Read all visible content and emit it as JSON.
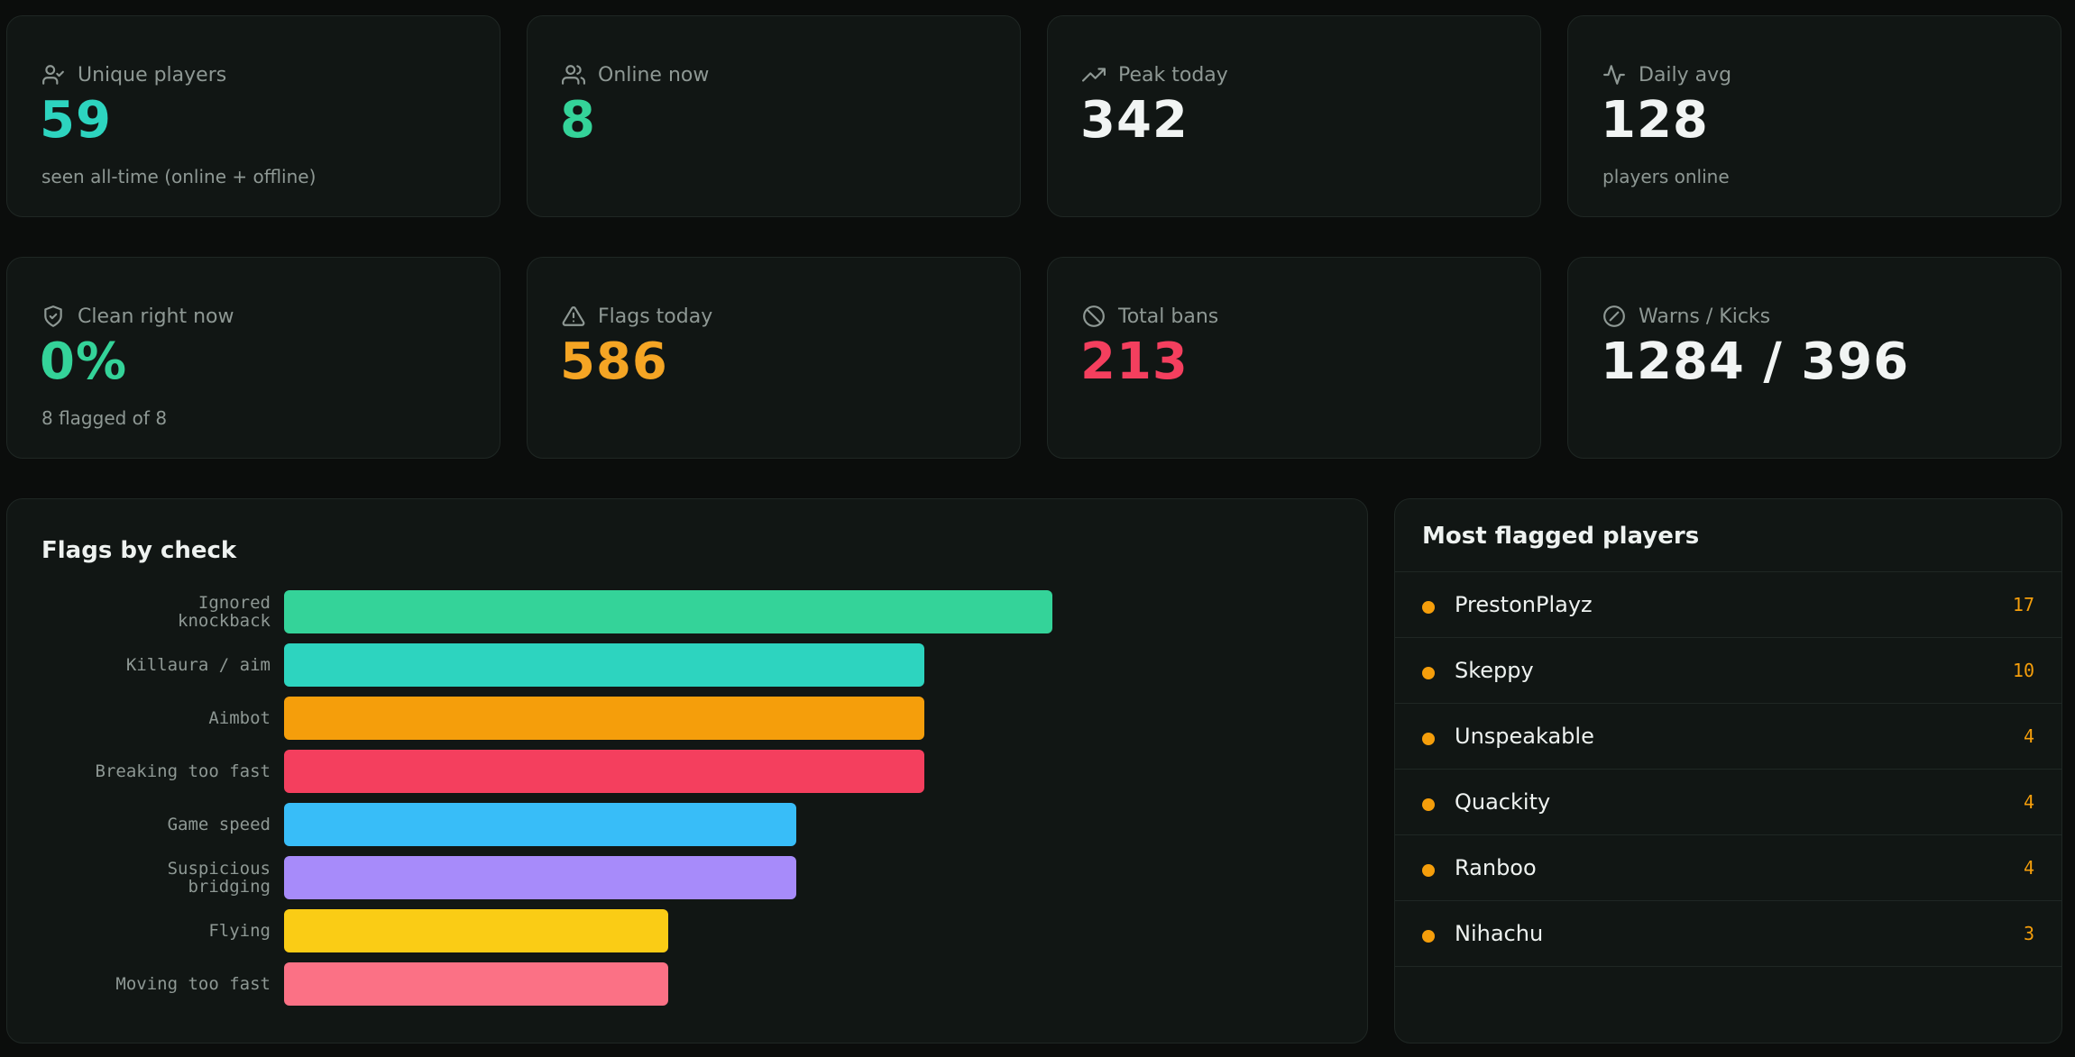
{
  "stats": [
    {
      "label": "Unique players",
      "value": "59",
      "sub": "seen all-time (online + offline)",
      "icon": "user-check-icon",
      "color": "#2dd4bf"
    },
    {
      "label": "Online now",
      "value": "8",
      "sub": "",
      "icon": "users-icon",
      "color": "#34d399"
    },
    {
      "label": "Peak today",
      "value": "342",
      "sub": "",
      "icon": "trending-up-icon",
      "color": "#f1f4f3"
    },
    {
      "label": "Daily avg",
      "value": "128",
      "sub": "players online",
      "icon": "activity-icon",
      "color": "#f1f4f3"
    },
    {
      "label": "Clean right now",
      "value": "0%",
      "sub": "8 flagged of 8",
      "icon": "shield-check-icon",
      "color": "#34d399"
    },
    {
      "label": "Flags today",
      "value": "586",
      "sub": "",
      "icon": "alert-triangle-icon",
      "color": "#f5a524"
    },
    {
      "label": "Total bans",
      "value": "213",
      "sub": "",
      "icon": "ban-icon",
      "color": "#f43f5e"
    },
    {
      "label": "Warns / Kicks",
      "value": "1284 / 396",
      "sub": "",
      "icon": "gauge-icon",
      "color": "#f1f4f3"
    }
  ],
  "flags_panel": {
    "title": "Flags by check"
  },
  "chart_data": {
    "type": "bar",
    "orientation": "horizontal",
    "title": "Flags by check",
    "categories": [
      "Ignored knockback",
      "Killaura / aim",
      "Aimbot",
      "Breaking too fast",
      "Game speed",
      "Suspicious bridging",
      "Flying",
      "Moving too fast"
    ],
    "category_lines": [
      [
        "Ignored",
        "knockback"
      ],
      [
        "Killaura / aim"
      ],
      [
        "Aimbot"
      ],
      [
        "Breaking too fast"
      ],
      [
        "Game speed"
      ],
      [
        "Suspicious",
        "bridging"
      ],
      [
        "Flying"
      ],
      [
        "Moving too fast"
      ]
    ],
    "values": [
      6,
      5,
      5,
      5,
      4,
      4,
      3,
      3
    ],
    "xlim": [
      0,
      10
    ],
    "colors": [
      "#34d399",
      "#2dd4bf",
      "#f59e0b",
      "#f43f5e",
      "#38bdf8",
      "#a78bfa",
      "#facc15",
      "#fb7185"
    ],
    "grid": false
  },
  "players_panel": {
    "title": "Most flagged players",
    "players": [
      {
        "name": "PrestonPlayz",
        "count": "17"
      },
      {
        "name": "Skeppy",
        "count": "10"
      },
      {
        "name": "Unspeakable",
        "count": "4"
      },
      {
        "name": "Quackity",
        "count": "4"
      },
      {
        "name": "Ranboo",
        "count": "4"
      },
      {
        "name": "Nihachu",
        "count": "3"
      }
    ]
  }
}
